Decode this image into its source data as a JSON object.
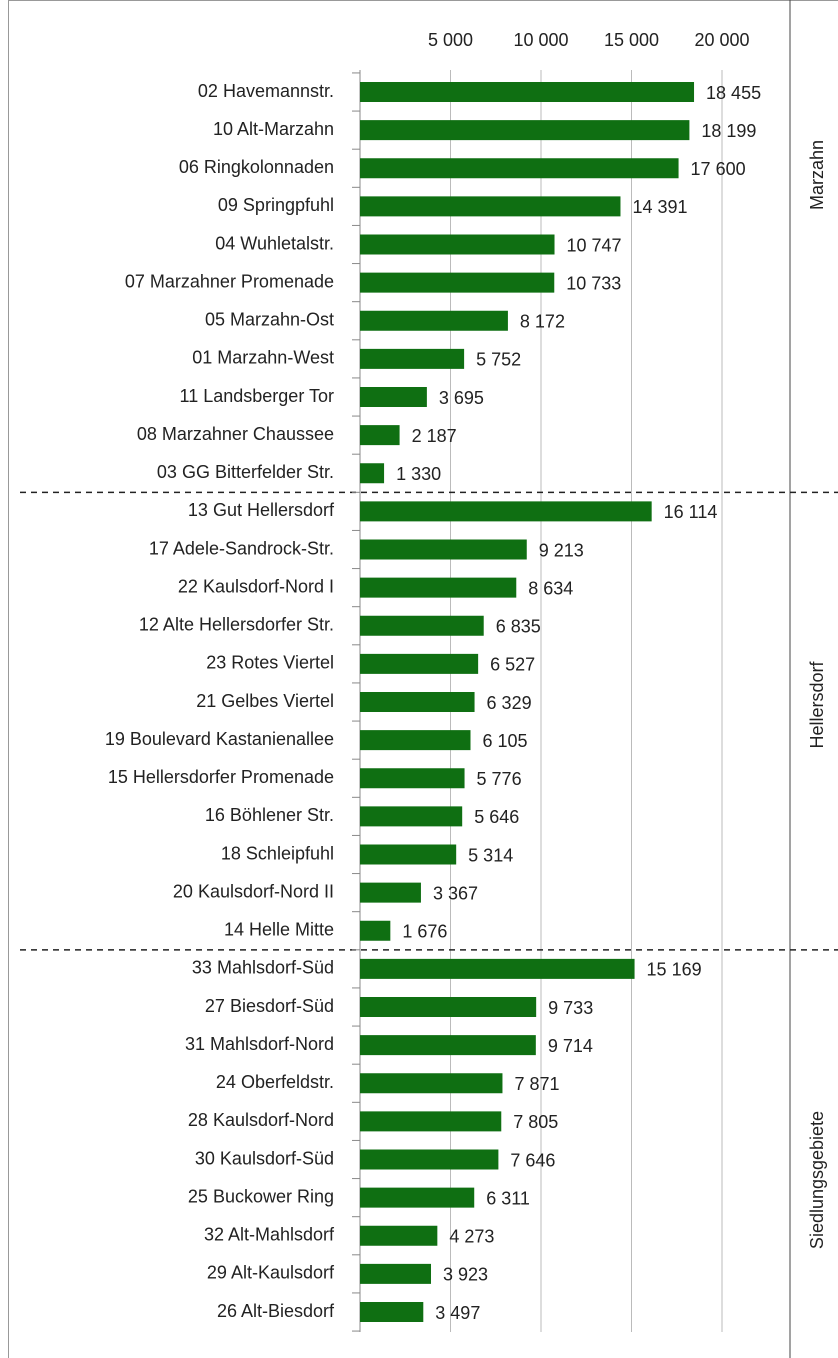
{
  "chart_data": {
    "type": "bar",
    "color": "#0f6f12",
    "grid": true,
    "xlim": [
      0,
      20000
    ],
    "xticks": [
      {
        "value": 5000,
        "label": "5 000"
      },
      {
        "value": 10000,
        "label": "10 000"
      },
      {
        "value": 15000,
        "label": "15 000"
      },
      {
        "value": 20000,
        "label": "20 000"
      }
    ],
    "groups": [
      {
        "name": "Marzahn",
        "categories": [
          "02 Havemannstr.",
          "10 Alt-Marzahn",
          "06 Ringkolonnaden",
          "09 Springpfuhl",
          "04 Wuhletalstr.",
          "07 Marzahner Promenade",
          "05 Marzahn-Ost",
          "01 Marzahn-West",
          "11 Landsberger Tor",
          "08 Marzahner Chaussee",
          "03 GG Bitterfelder Str."
        ],
        "values": [
          18455,
          18199,
          17600,
          14391,
          10747,
          10733,
          8172,
          5752,
          3695,
          2187,
          1330
        ],
        "value_labels": [
          "18 455",
          "18 199",
          "17 600",
          "14 391",
          "10 747",
          "10 733",
          "8 172",
          "5 752",
          "3 695",
          "2 187",
          "1 330"
        ]
      },
      {
        "name": "Hellersdorf",
        "categories": [
          "13 Gut Hellersdorf",
          "17 Adele-Sandrock-Str.",
          "22 Kaulsdorf-Nord I",
          "12 Alte Hellersdorfer Str.",
          "23 Rotes Viertel",
          "21 Gelbes Viertel",
          "19 Boulevard Kastanienallee",
          "15 Hellersdorfer Promenade",
          "16 Böhlener Str.",
          "18 Schleipfuhl",
          "20 Kaulsdorf-Nord II",
          "14 Helle Mitte"
        ],
        "values": [
          16114,
          9213,
          8634,
          6835,
          6527,
          6329,
          6105,
          5776,
          5646,
          5314,
          3367,
          1676
        ],
        "value_labels": [
          "16 114",
          "9 213",
          "8 634",
          "6 835",
          "6 527",
          "6 329",
          "6 105",
          "5 776",
          "5 646",
          "5 314",
          "3 367",
          "1 676"
        ]
      },
      {
        "name": "Siedlungsgebiete",
        "categories": [
          "33 Mahlsdorf-Süd",
          "27 Biesdorf-Süd",
          "31 Mahlsdorf-Nord",
          "24 Oberfeldstr.",
          "28 Kaulsdorf-Nord",
          "30 Kaulsdorf-Süd",
          "25 Buckower Ring",
          "32 Alt-Mahlsdorf",
          "29 Alt-Kaulsdorf",
          "26 Alt-Biesdorf"
        ],
        "values": [
          15169,
          9733,
          9714,
          7871,
          7805,
          7646,
          6311,
          4273,
          3923,
          3497
        ],
        "value_labels": [
          "15 169",
          "9 733",
          "9 714",
          "7 871",
          "7 805",
          "7 646",
          "6 311",
          "4 273",
          "3 923",
          "3 497"
        ]
      }
    ]
  }
}
